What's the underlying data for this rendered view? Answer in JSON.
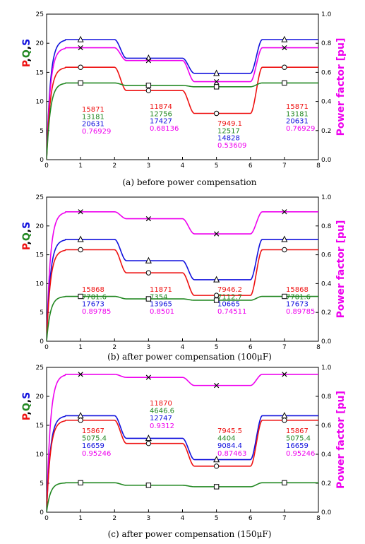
{
  "colors": {
    "P": "#ee1111",
    "Q": "#228822",
    "S": "#1111dd",
    "PF": "#ee00ee"
  },
  "chart_data": [
    {
      "type": "line",
      "caption": "(a) before power compensation",
      "xlim": [
        0,
        8
      ],
      "xticks": [
        "0",
        "1",
        "2",
        "3",
        "4",
        "5",
        "6",
        "7",
        "8"
      ],
      "ylim": [
        0,
        25
      ],
      "yticks": [
        "0",
        "5",
        "10",
        "15",
        "20",
        "25"
      ],
      "y2lim": [
        0,
        1.0
      ],
      "y2ticks": [
        "0.0",
        "0.2",
        "0.4",
        "0.6",
        "0.8",
        "1.0"
      ],
      "ylabel_parts": [
        "P",
        ",",
        "Q",
        ",",
        "S"
      ],
      "y2label": "Power factor [pu]",
      "series": [
        {
          "key": "S",
          "marker": "triangle",
          "axis": "left",
          "levels": [
            20.63,
            17.43,
            14.83,
            20.63
          ]
        },
        {
          "key": "PF",
          "marker": "x",
          "axis": "right",
          "levels": [
            0.769,
            0.681,
            0.536,
            0.769
          ]
        },
        {
          "key": "P",
          "marker": "circle",
          "axis": "left",
          "levels": [
            15.87,
            11.87,
            7.95,
            15.87
          ]
        },
        {
          "key": "Q",
          "marker": "square",
          "axis": "left",
          "levels": [
            13.18,
            12.76,
            12.52,
            13.18
          ]
        }
      ],
      "annotations": [
        [
          "15871",
          "13181",
          "20631",
          "0.76929"
        ],
        [
          "11874",
          "12756",
          "17427",
          "0.68136"
        ],
        [
          "7949.1",
          "12517",
          "14828",
          "0.53609"
        ],
        [
          "15871",
          "13181",
          "20631",
          "0.76929"
        ]
      ]
    },
    {
      "type": "line",
      "caption": "(b) after power compensation (100μF)",
      "xlim": [
        0,
        8
      ],
      "xticks": [
        "0",
        "1",
        "2",
        "3",
        "4",
        "5",
        "6",
        "7",
        "8"
      ],
      "ylim": [
        0,
        25
      ],
      "yticks": [
        "0",
        "5",
        "10",
        "15",
        "20",
        "25"
      ],
      "y2lim": [
        0,
        1.0
      ],
      "y2ticks": [
        "0.0",
        "0.2",
        "0.4",
        "0.6",
        "0.8",
        "1.0"
      ],
      "ylabel_parts": [
        "P",
        ",",
        "Q",
        ",",
        "S"
      ],
      "y2label": "Power factor [pu]",
      "series": [
        {
          "key": "PF",
          "marker": "x",
          "axis": "right",
          "levels": [
            0.898,
            0.85,
            0.745,
            0.898
          ]
        },
        {
          "key": "S",
          "marker": "triangle",
          "axis": "left",
          "levels": [
            17.67,
            13.97,
            10.67,
            17.67
          ]
        },
        {
          "key": "P",
          "marker": "circle",
          "axis": "left",
          "levels": [
            15.87,
            11.87,
            7.95,
            15.87
          ]
        },
        {
          "key": "Q",
          "marker": "square",
          "axis": "left",
          "levels": [
            7.78,
            7.35,
            7.11,
            7.78
          ]
        }
      ],
      "annotations": [
        [
          "15868",
          "7781.6",
          "17673",
          "0.89785"
        ],
        [
          "11871",
          "7354",
          "13965",
          "0.8501"
        ],
        [
          "7946.2",
          "7112.7",
          "10665",
          "0.74511"
        ],
        [
          "15868",
          "7781.6",
          "17673",
          "0.89785"
        ]
      ]
    },
    {
      "type": "line",
      "caption": "(c) after power compensation (150μF)",
      "xlim": [
        0,
        8
      ],
      "xticks": [
        "0",
        "1",
        "2",
        "3",
        "4",
        "5",
        "6",
        "7",
        "8"
      ],
      "ylim": [
        0,
        25
      ],
      "yticks": [
        "0",
        "5",
        "10",
        "15",
        "20",
        "25"
      ],
      "y2lim": [
        0,
        1.0
      ],
      "y2ticks": [
        "0.0",
        "0.2",
        "0.4",
        "0.6",
        "0.8",
        "1.0"
      ],
      "ylabel_parts": [
        "P",
        ",",
        "Q",
        ",",
        "S"
      ],
      "y2label": "Power factor [pu]",
      "series": [
        {
          "key": "PF",
          "marker": "x",
          "axis": "right",
          "levels": [
            0.952,
            0.931,
            0.875,
            0.952
          ]
        },
        {
          "key": "S",
          "marker": "triangle",
          "axis": "left",
          "levels": [
            16.66,
            12.75,
            9.08,
            16.66
          ]
        },
        {
          "key": "P",
          "marker": "circle",
          "axis": "left",
          "levels": [
            15.87,
            11.87,
            7.95,
            15.87
          ]
        },
        {
          "key": "Q",
          "marker": "square",
          "axis": "left",
          "levels": [
            5.08,
            4.65,
            4.4,
            5.08
          ]
        }
      ],
      "annotations": [
        [
          "15867",
          "5075.4",
          "16659",
          "0.95246"
        ],
        [
          "11870",
          "4646.6",
          "12747",
          "0.9312"
        ],
        [
          "7945.5",
          "4404",
          "9084.4",
          "0.87463"
        ],
        [
          "15867",
          "5075.4",
          "16659",
          "0.95246"
        ]
      ]
    }
  ]
}
